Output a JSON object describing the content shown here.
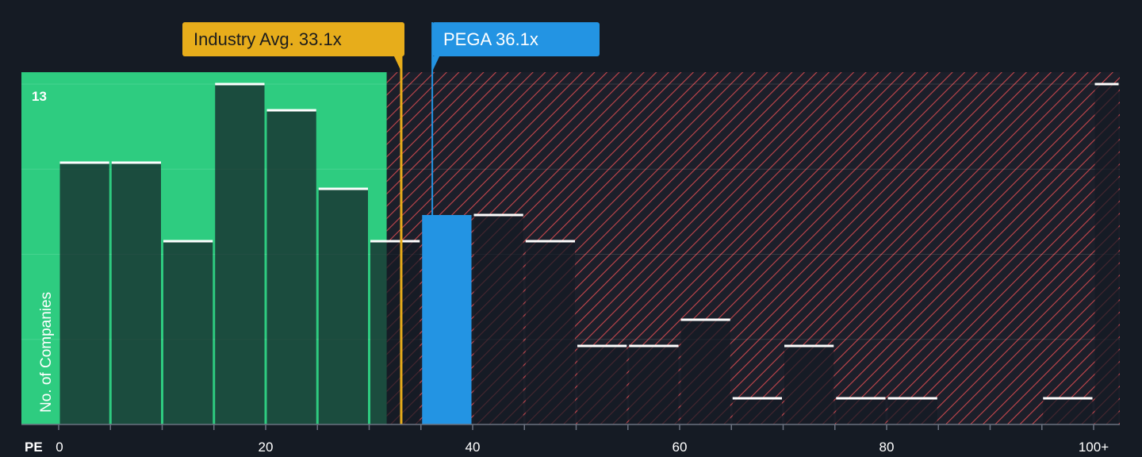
{
  "chart_data": {
    "type": "bar",
    "xlabel": "PE",
    "ylabel": "No. of Companies",
    "x_ticks": [
      {
        "value": 0,
        "label": "0"
      },
      {
        "value": 20,
        "label": "20"
      },
      {
        "value": 40,
        "label": "40"
      },
      {
        "value": 60,
        "label": "60"
      },
      {
        "value": 80,
        "label": "80"
      },
      {
        "value": 100,
        "label": "100+"
      }
    ],
    "y_max_label": "13",
    "ylim": [
      0,
      13
    ],
    "bin_width": 5,
    "bins": [
      {
        "start": 0,
        "count": 10
      },
      {
        "start": 5,
        "count": 10
      },
      {
        "start": 10,
        "count": 7
      },
      {
        "start": 15,
        "count": 13
      },
      {
        "start": 20,
        "count": 12
      },
      {
        "start": 25,
        "count": 9
      },
      {
        "start": 30,
        "count": 7
      },
      {
        "start": 35,
        "count": 8
      },
      {
        "start": 40,
        "count": 8
      },
      {
        "start": 45,
        "count": 7
      },
      {
        "start": 50,
        "count": 3
      },
      {
        "start": 55,
        "count": 3
      },
      {
        "start": 60,
        "count": 4
      },
      {
        "start": 65,
        "count": 1
      },
      {
        "start": 70,
        "count": 3
      },
      {
        "start": 75,
        "count": 1
      },
      {
        "start": 80,
        "count": 1
      },
      {
        "start": 85,
        "count": 0
      },
      {
        "start": 90,
        "count": 0
      },
      {
        "start": 95,
        "count": 1
      },
      {
        "start": 100,
        "count": 13
      }
    ],
    "industry_avg": {
      "label": "Industry Avg. 33.1x",
      "value": 33.1
    },
    "company": {
      "label": "PEGA 36.1x",
      "value": 36.1,
      "bin_start": 35
    },
    "fair_value_upper": 31.7,
    "colors": {
      "background": "#151b24",
      "fair_zone": "#2ecc80",
      "overvalued_hatch": "#c7474d",
      "industry": "#e7ad1b",
      "company": "#2394e3",
      "bar_cap": "#ffffff"
    }
  }
}
